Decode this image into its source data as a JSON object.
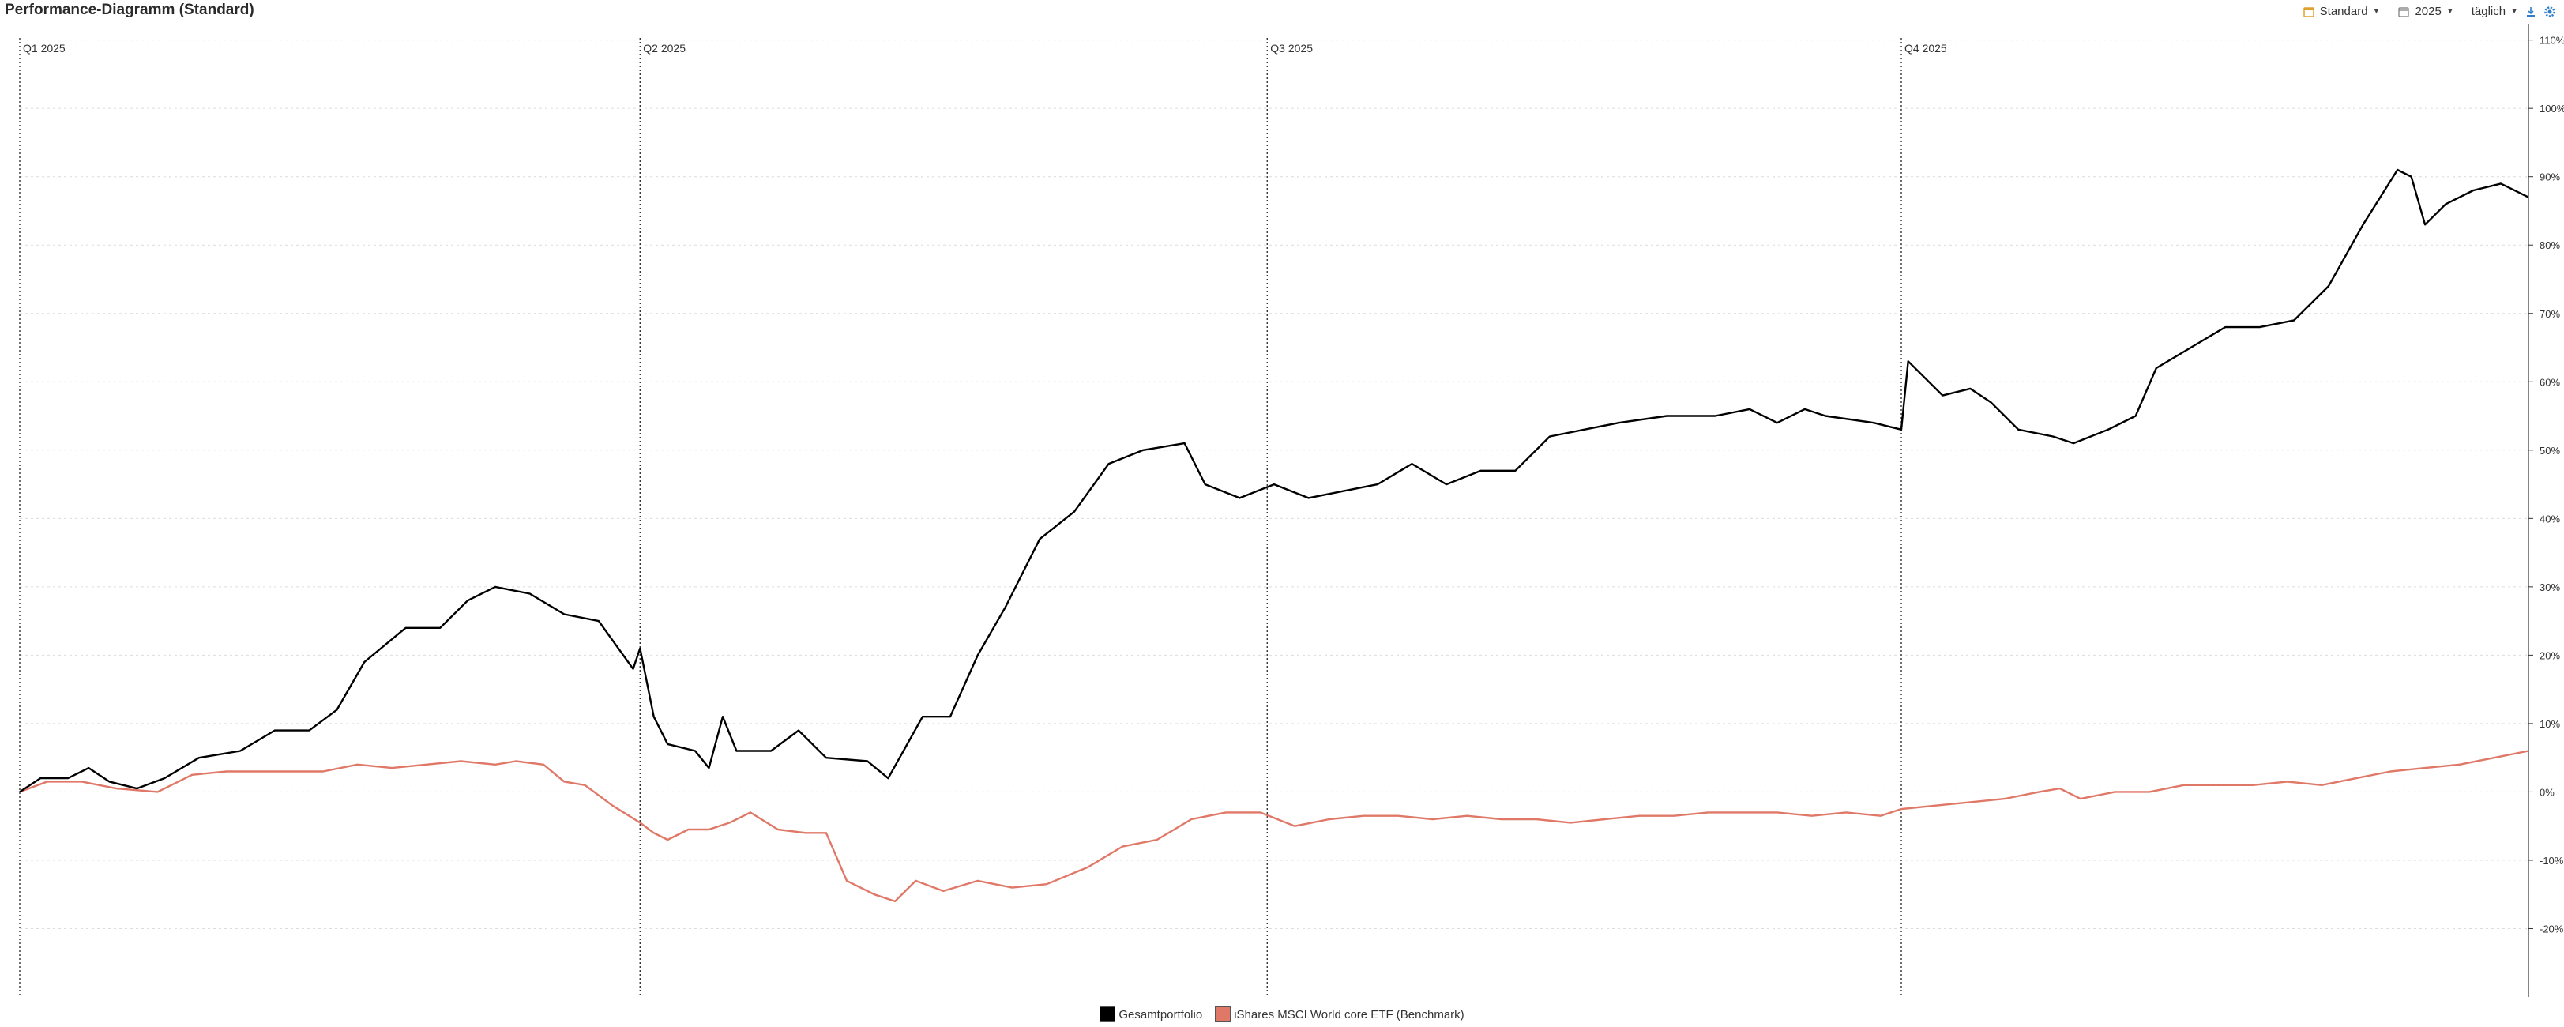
{
  "page": {
    "title": "Performance-Diagramm (Standard)"
  },
  "toolbar": {
    "profile_label": "Standard",
    "year_label": "2025",
    "interval_label": "täglich",
    "icons": [
      "calendar-icon",
      "calendar-outline-icon",
      "caret-down-icon",
      "export-icon",
      "settings-icon"
    ],
    "accent_color": "#e0a030",
    "settings_color": "#2f7fc8"
  },
  "chart_data": {
    "type": "line",
    "x_unit": "date",
    "xlim": [
      "2025-01-01",
      "2025-12-31"
    ],
    "ylim": [
      -30,
      111
    ],
    "yticks": [
      -20,
      -10,
      0,
      10,
      20,
      30,
      40,
      50,
      60,
      70,
      80,
      90,
      100,
      110
    ],
    "ytick_suffix": "%",
    "grid": true,
    "legend_position": "bottom-center",
    "quarters": [
      {
        "label": "Q1 2025",
        "date": "2025-01-01"
      },
      {
        "label": "Q2 2025",
        "date": "2025-04-01"
      },
      {
        "label": "Q3 2025",
        "date": "2025-07-01"
      },
      {
        "label": "Q4 2025",
        "date": "2025-10-01"
      }
    ],
    "series": [
      {
        "name": "Gesamtportfolio",
        "color": "#000000",
        "points": [
          [
            "2025-01-01",
            0
          ],
          [
            "2025-01-04",
            2
          ],
          [
            "2025-01-08",
            2
          ],
          [
            "2025-01-11",
            3.5
          ],
          [
            "2025-01-14",
            1.5
          ],
          [
            "2025-01-18",
            0.5
          ],
          [
            "2025-01-22",
            2
          ],
          [
            "2025-01-27",
            5
          ],
          [
            "2025-02-02",
            6
          ],
          [
            "2025-02-07",
            9
          ],
          [
            "2025-02-12",
            9
          ],
          [
            "2025-02-16",
            12
          ],
          [
            "2025-02-20",
            19
          ],
          [
            "2025-02-26",
            24
          ],
          [
            "2025-03-03",
            24
          ],
          [
            "2025-03-07",
            28
          ],
          [
            "2025-03-11",
            30
          ],
          [
            "2025-03-16",
            29
          ],
          [
            "2025-03-21",
            26
          ],
          [
            "2025-03-26",
            25
          ],
          [
            "2025-03-31",
            18
          ],
          [
            "2025-04-01",
            21
          ],
          [
            "2025-04-03",
            11
          ],
          [
            "2025-04-05",
            7
          ],
          [
            "2025-04-09",
            6
          ],
          [
            "2025-04-11",
            3.5
          ],
          [
            "2025-04-13",
            11
          ],
          [
            "2025-04-15",
            6
          ],
          [
            "2025-04-20",
            6
          ],
          [
            "2025-04-24",
            9
          ],
          [
            "2025-04-28",
            5
          ],
          [
            "2025-05-04",
            4.5
          ],
          [
            "2025-05-07",
            2
          ],
          [
            "2025-05-12",
            11
          ],
          [
            "2025-05-16",
            11
          ],
          [
            "2025-05-20",
            20
          ],
          [
            "2025-05-24",
            27
          ],
          [
            "2025-05-29",
            37
          ],
          [
            "2025-06-03",
            41
          ],
          [
            "2025-06-08",
            48
          ],
          [
            "2025-06-13",
            50
          ],
          [
            "2025-06-19",
            51
          ],
          [
            "2025-06-22",
            45
          ],
          [
            "2025-06-27",
            43
          ],
          [
            "2025-07-02",
            45
          ],
          [
            "2025-07-07",
            43
          ],
          [
            "2025-07-12",
            44
          ],
          [
            "2025-07-17",
            45
          ],
          [
            "2025-07-22",
            48
          ],
          [
            "2025-07-27",
            45
          ],
          [
            "2025-08-01",
            47
          ],
          [
            "2025-08-06",
            47
          ],
          [
            "2025-08-11",
            52
          ],
          [
            "2025-08-16",
            53
          ],
          [
            "2025-08-21",
            54
          ],
          [
            "2025-08-28",
            55
          ],
          [
            "2025-09-04",
            55
          ],
          [
            "2025-09-09",
            56
          ],
          [
            "2025-09-13",
            54
          ],
          [
            "2025-09-17",
            56
          ],
          [
            "2025-09-20",
            55
          ],
          [
            "2025-09-27",
            54
          ],
          [
            "2025-10-01",
            53
          ],
          [
            "2025-10-02",
            63
          ],
          [
            "2025-10-07",
            58
          ],
          [
            "2025-10-11",
            59
          ],
          [
            "2025-10-14",
            57
          ],
          [
            "2025-10-18",
            53
          ],
          [
            "2025-10-23",
            52
          ],
          [
            "2025-10-26",
            51
          ],
          [
            "2025-10-31",
            53
          ],
          [
            "2025-11-04",
            55
          ],
          [
            "2025-11-07",
            62
          ],
          [
            "2025-11-12",
            65
          ],
          [
            "2025-11-17",
            68
          ],
          [
            "2025-11-22",
            68
          ],
          [
            "2025-11-27",
            69
          ],
          [
            "2025-12-02",
            74
          ],
          [
            "2025-12-07",
            83
          ],
          [
            "2025-12-12",
            91
          ],
          [
            "2025-12-14",
            90
          ],
          [
            "2025-12-16",
            83
          ],
          [
            "2025-12-19",
            86
          ],
          [
            "2025-12-21",
            87
          ],
          [
            "2025-12-23",
            88
          ],
          [
            "2025-12-27",
            89
          ],
          [
            "2025-12-31",
            87
          ]
        ]
      },
      {
        "name": "iShares MSCI World core ETF  (Benchmark)",
        "color": "#e07868",
        "points": [
          [
            "2025-01-01",
            0
          ],
          [
            "2025-01-05",
            1.5
          ],
          [
            "2025-01-10",
            1.5
          ],
          [
            "2025-01-15",
            0.5
          ],
          [
            "2025-01-21",
            0
          ],
          [
            "2025-01-26",
            2.5
          ],
          [
            "2025-01-31",
            3
          ],
          [
            "2025-02-05",
            3
          ],
          [
            "2025-02-10",
            3
          ],
          [
            "2025-02-14",
            3
          ],
          [
            "2025-02-19",
            4
          ],
          [
            "2025-02-24",
            3.5
          ],
          [
            "2025-03-01",
            4
          ],
          [
            "2025-03-06",
            4.5
          ],
          [
            "2025-03-11",
            4
          ],
          [
            "2025-03-14",
            4.5
          ],
          [
            "2025-03-18",
            4
          ],
          [
            "2025-03-21",
            1.5
          ],
          [
            "2025-03-24",
            1
          ],
          [
            "2025-03-28",
            -2
          ],
          [
            "2025-04-01",
            -4.5
          ],
          [
            "2025-04-03",
            -6
          ],
          [
            "2025-04-05",
            -7
          ],
          [
            "2025-04-08",
            -5.5
          ],
          [
            "2025-04-11",
            -5.5
          ],
          [
            "2025-04-14",
            -4.5
          ],
          [
            "2025-04-17",
            -3
          ],
          [
            "2025-04-21",
            -5.5
          ],
          [
            "2025-04-25",
            -6
          ],
          [
            "2025-04-28",
            -6
          ],
          [
            "2025-05-01",
            -13
          ],
          [
            "2025-05-05",
            -15
          ],
          [
            "2025-05-08",
            -16
          ],
          [
            "2025-05-11",
            -13
          ],
          [
            "2025-05-15",
            -14.5
          ],
          [
            "2025-05-20",
            -13
          ],
          [
            "2025-05-25",
            -14
          ],
          [
            "2025-05-30",
            -13.5
          ],
          [
            "2025-06-05",
            -11
          ],
          [
            "2025-06-10",
            -8
          ],
          [
            "2025-06-15",
            -7
          ],
          [
            "2025-06-20",
            -4
          ],
          [
            "2025-06-25",
            -3
          ],
          [
            "2025-06-30",
            -3
          ],
          [
            "2025-07-05",
            -5
          ],
          [
            "2025-07-10",
            -4
          ],
          [
            "2025-07-15",
            -3.5
          ],
          [
            "2025-07-20",
            -3.5
          ],
          [
            "2025-07-25",
            -4
          ],
          [
            "2025-07-30",
            -3.5
          ],
          [
            "2025-08-04",
            -4
          ],
          [
            "2025-08-09",
            -4
          ],
          [
            "2025-08-14",
            -4.5
          ],
          [
            "2025-08-19",
            -4
          ],
          [
            "2025-08-24",
            -3.5
          ],
          [
            "2025-08-29",
            -3.5
          ],
          [
            "2025-09-03",
            -3
          ],
          [
            "2025-09-08",
            -3
          ],
          [
            "2025-09-13",
            -3
          ],
          [
            "2025-09-18",
            -3.5
          ],
          [
            "2025-09-23",
            -3
          ],
          [
            "2025-09-28",
            -3.5
          ],
          [
            "2025-10-01",
            -2.5
          ],
          [
            "2025-10-06",
            -2
          ],
          [
            "2025-10-11",
            -1.5
          ],
          [
            "2025-10-16",
            -1
          ],
          [
            "2025-10-21",
            0
          ],
          [
            "2025-10-24",
            0.5
          ],
          [
            "2025-10-27",
            -1
          ],
          [
            "2025-11-01",
            0
          ],
          [
            "2025-11-06",
            0
          ],
          [
            "2025-11-11",
            1
          ],
          [
            "2025-11-16",
            1
          ],
          [
            "2025-11-21",
            1
          ],
          [
            "2025-11-26",
            1.5
          ],
          [
            "2025-12-01",
            1
          ],
          [
            "2025-12-06",
            2
          ],
          [
            "2025-12-11",
            3
          ],
          [
            "2025-12-16",
            3.5
          ],
          [
            "2025-12-21",
            4
          ],
          [
            "2025-12-26",
            5
          ],
          [
            "2025-12-31",
            6
          ]
        ]
      }
    ]
  }
}
